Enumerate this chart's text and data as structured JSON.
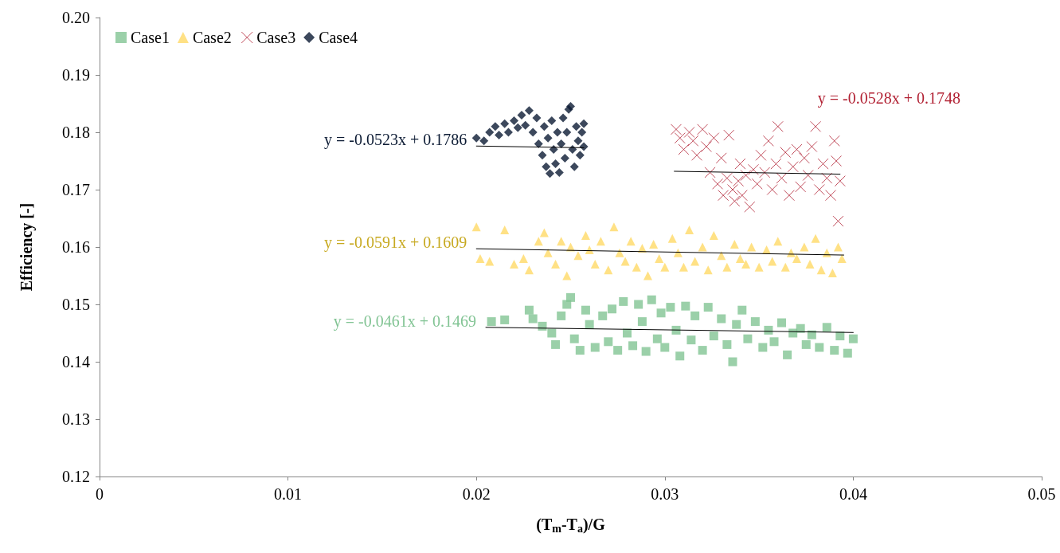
{
  "chart_data": {
    "type": "scatter",
    "xlabel": "(T$_{m}$-T$_{a}$)/G",
    "ylabel": "Efficiency [-]",
    "xlim": [
      0,
      0.05
    ],
    "xticks": [
      0,
      0.01,
      0.02,
      0.03,
      0.04,
      0.05
    ],
    "ylim": [
      0.12,
      0.2
    ],
    "yticks": [
      0.12,
      0.13,
      0.14,
      0.15,
      0.16,
      0.17,
      0.18,
      0.19,
      {
        "value": 0.2,
        "label": "0.20"
      }
    ],
    "grid": false,
    "legend": "top left",
    "annotations": [
      "y = -0.0461x + 0.1469",
      "y = -0.0591x + 0.1609",
      "y = -0.0528x + 0.1748",
      "y = -0.0523x + 0.1786"
    ],
    "series": [
      {
        "name": "Case1",
        "color": "#82c494",
        "marker": "square",
        "x": [
          0.0208,
          0.0215,
          0.0228,
          0.023,
          0.0235,
          0.024,
          0.0242,
          0.0245,
          0.0248,
          0.025,
          0.0252,
          0.0255,
          0.0258,
          0.026,
          0.0263,
          0.0267,
          0.027,
          0.0272,
          0.0275,
          0.0278,
          0.028,
          0.0283,
          0.0286,
          0.0288,
          0.029,
          0.0293,
          0.0296,
          0.0298,
          0.03,
          0.0303,
          0.0306,
          0.0308,
          0.0311,
          0.0314,
          0.0316,
          0.032,
          0.0323,
          0.0326,
          0.033,
          0.0333,
          0.0336,
          0.0338,
          0.0341,
          0.0344,
          0.0348,
          0.0352,
          0.0355,
          0.0358,
          0.0362,
          0.0365,
          0.0368,
          0.0372,
          0.0375,
          0.0378,
          0.0382,
          0.0386,
          0.039,
          0.0393,
          0.0397,
          0.04
        ],
        "values": [
          0.147,
          0.1473,
          0.149,
          0.1475,
          0.1462,
          0.145,
          0.143,
          0.148,
          0.15,
          0.1512,
          0.144,
          0.142,
          0.149,
          0.1465,
          0.1425,
          0.148,
          0.1435,
          0.1492,
          0.142,
          0.1505,
          0.145,
          0.1428,
          0.15,
          0.147,
          0.1418,
          0.1508,
          0.144,
          0.1485,
          0.1425,
          0.1495,
          0.1455,
          0.141,
          0.1497,
          0.1438,
          0.148,
          0.142,
          0.1495,
          0.1445,
          0.1475,
          0.143,
          0.14,
          0.1465,
          0.149,
          0.144,
          0.147,
          0.1425,
          0.1455,
          0.1435,
          0.1468,
          0.1412,
          0.145,
          0.1458,
          0.143,
          0.1447,
          0.1425,
          0.146,
          0.142,
          0.1445,
          0.1415,
          0.144
        ]
      },
      {
        "name": "Case2",
        "color": "#ffd966",
        "marker": "triangle",
        "x": [
          0.02,
          0.0202,
          0.0207,
          0.0215,
          0.022,
          0.0225,
          0.0228,
          0.0233,
          0.0236,
          0.0238,
          0.0242,
          0.0245,
          0.0248,
          0.025,
          0.0254,
          0.0258,
          0.026,
          0.0263,
          0.0266,
          0.027,
          0.0273,
          0.0276,
          0.0279,
          0.0282,
          0.0285,
          0.0288,
          0.0291,
          0.0294,
          0.0297,
          0.03,
          0.0304,
          0.0307,
          0.031,
          0.0313,
          0.0316,
          0.032,
          0.0323,
          0.0326,
          0.033,
          0.0333,
          0.0337,
          0.034,
          0.0343,
          0.0346,
          0.035,
          0.0354,
          0.0357,
          0.036,
          0.0364,
          0.0367,
          0.037,
          0.0374,
          0.0377,
          0.038,
          0.0383,
          0.0386,
          0.0389,
          0.0392,
          0.0394
        ],
        "values": [
          0.1635,
          0.158,
          0.1575,
          0.163,
          0.157,
          0.158,
          0.156,
          0.161,
          0.1625,
          0.159,
          0.157,
          0.161,
          0.155,
          0.16,
          0.1585,
          0.162,
          0.1595,
          0.157,
          0.161,
          0.156,
          0.1635,
          0.159,
          0.1575,
          0.161,
          0.1565,
          0.1598,
          0.155,
          0.1605,
          0.158,
          0.1565,
          0.1615,
          0.159,
          0.1565,
          0.163,
          0.1575,
          0.16,
          0.156,
          0.162,
          0.1585,
          0.1565,
          0.1605,
          0.158,
          0.157,
          0.16,
          0.1565,
          0.1595,
          0.1575,
          0.161,
          0.1565,
          0.159,
          0.158,
          0.16,
          0.157,
          0.1615,
          0.156,
          0.159,
          0.1555,
          0.16,
          0.158
        ]
      },
      {
        "name": "Case3",
        "color": "#b22234",
        "marker": "cross",
        "x": [
          0.0306,
          0.0308,
          0.031,
          0.0313,
          0.0315,
          0.0317,
          0.032,
          0.0322,
          0.0324,
          0.0326,
          0.0328,
          0.033,
          0.0331,
          0.0333,
          0.0334,
          0.0336,
          0.0337,
          0.0339,
          0.034,
          0.0341,
          0.0343,
          0.0345,
          0.0347,
          0.0349,
          0.0351,
          0.0353,
          0.0355,
          0.0357,
          0.0359,
          0.036,
          0.0362,
          0.0364,
          0.0366,
          0.0368,
          0.037,
          0.0372,
          0.0374,
          0.0376,
          0.0378,
          0.038,
          0.0382,
          0.0384,
          0.0386,
          0.0388,
          0.039,
          0.0391,
          0.0392,
          0.0393
        ],
        "values": [
          0.1805,
          0.179,
          0.177,
          0.18,
          0.1785,
          0.176,
          0.1805,
          0.1775,
          0.173,
          0.179,
          0.171,
          0.1755,
          0.169,
          0.172,
          0.1795,
          0.17,
          0.168,
          0.1715,
          0.1745,
          0.169,
          0.1725,
          0.167,
          0.1735,
          0.171,
          0.176,
          0.173,
          0.1785,
          0.17,
          0.1745,
          0.181,
          0.172,
          0.1765,
          0.169,
          0.174,
          0.177,
          0.1705,
          0.1755,
          0.1725,
          0.1775,
          0.181,
          0.17,
          0.1745,
          0.172,
          0.169,
          0.1785,
          0.175,
          0.1645,
          0.1715
        ]
      },
      {
        "name": "Case4",
        "color": "#0b1a33",
        "marker": "diamond",
        "x": [
          0.02,
          0.0204,
          0.0207,
          0.021,
          0.0212,
          0.0215,
          0.0217,
          0.022,
          0.0222,
          0.0224,
          0.0226,
          0.0228,
          0.023,
          0.0232,
          0.0233,
          0.0235,
          0.0236,
          0.0237,
          0.0238,
          0.0239,
          0.024,
          0.0241,
          0.0242,
          0.0243,
          0.0244,
          0.0245,
          0.0246,
          0.0247,
          0.0248,
          0.0249,
          0.025,
          0.0251,
          0.0252,
          0.0253,
          0.0254,
          0.0255,
          0.0256,
          0.0257,
          0.0257
        ],
        "values": [
          0.179,
          0.1785,
          0.18,
          0.181,
          0.1795,
          0.1815,
          0.18,
          0.182,
          0.1808,
          0.183,
          0.1812,
          0.1838,
          0.18,
          0.1825,
          0.178,
          0.176,
          0.181,
          0.174,
          0.179,
          0.1728,
          0.182,
          0.177,
          0.1745,
          0.18,
          0.173,
          0.178,
          0.1825,
          0.1755,
          0.18,
          0.184,
          0.1845,
          0.177,
          0.174,
          0.181,
          0.1785,
          0.176,
          0.18,
          0.1775,
          0.1815
        ]
      },
      {
        "type": "line",
        "color": "#000000",
        "marker": "none",
        "x": [
          0.0205,
          0.04
        ],
        "values": [
          0.146,
          0.1451
        ]
      },
      {
        "type": "line",
        "color": "#000000",
        "marker": "none",
        "x": [
          0.02,
          0.0395
        ],
        "values": [
          0.1597,
          0.1586
        ]
      },
      {
        "type": "line",
        "color": "#000000",
        "marker": "none",
        "x": [
          0.0305,
          0.0393
        ],
        "values": [
          0.1732,
          0.1727
        ]
      },
      {
        "type": "line",
        "color": "#000000",
        "marker": "none",
        "x": [
          0.02,
          0.0257
        ],
        "values": [
          0.1776,
          0.1773
        ]
      }
    ]
  }
}
